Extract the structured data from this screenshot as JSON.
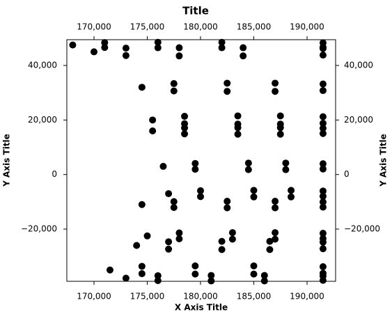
{
  "chart_data": {
    "type": "scatter",
    "title": "Title",
    "x_label": "X Axis Title",
    "y_label": "Y Axis Title",
    "color": "#000000",
    "xlim": [
      167450,
      192680
    ],
    "ylim": [
      -39150,
      49450
    ],
    "xticks": [
      {
        "value": 170000,
        "label": "170,000"
      },
      {
        "value": 175000,
        "label": "175,000"
      },
      {
        "value": 180000,
        "label": "180,000"
      },
      {
        "value": 185000,
        "label": "185,000"
      },
      {
        "value": 190000,
        "label": "190,000"
      }
    ],
    "yticks": [
      {
        "value": -20000,
        "label": "−20,000"
      },
      0,
      {
        "value": 20000,
        "label": "20,000"
      },
      {
        "value": 40000,
        "label": "40,000"
      }
    ],
    "x": [
      168000,
      171000,
      171000,
      176000,
      176000,
      182000,
      182000,
      191500,
      191500,
      170000,
      173000,
      173000,
      178000,
      178000,
      184000,
      184000,
      191500,
      191500,
      174500,
      177500,
      177500,
      182500,
      182500,
      187000,
      187000,
      191500,
      191500,
      175500,
      178500,
      178500,
      183500,
      183500,
      187500,
      187500,
      191500,
      191500,
      175500,
      178500,
      178500,
      183500,
      183500,
      187500,
      187500,
      191500,
      191500,
      176500,
      179500,
      179500,
      184500,
      184500,
      188000,
      188000,
      191500,
      191500,
      177000,
      180000,
      180000,
      185000,
      185000,
      188500,
      188500,
      191500,
      191500,
      174500,
      177500,
      177500,
      182500,
      182500,
      187000,
      187000,
      191500,
      191500,
      175000,
      178000,
      178000,
      183000,
      183000,
      187000,
      187000,
      191500,
      191500,
      174000,
      177000,
      177000,
      182000,
      182000,
      186500,
      186500,
      191500,
      191500,
      171500,
      174500,
      174500,
      179500,
      179500,
      185000,
      185000,
      191500,
      191500,
      173000,
      176000,
      176000,
      181000,
      181000,
      186000,
      186000,
      191500,
      191500
    ],
    "values": [
      47500,
      48400,
      46600,
      48500,
      46500,
      48500,
      46500,
      48300,
      46700,
      45000,
      46350,
      43650,
      46500,
      43500,
      46500,
      43500,
      46200,
      43800,
      32000,
      33350,
      30650,
      33500,
      30500,
      33500,
      30500,
      33200,
      30800,
      20000,
      21350,
      18650,
      21500,
      18500,
      21500,
      18500,
      21200,
      18800,
      16000,
      17080,
      14920,
      17200,
      14800,
      17200,
      14800,
      16960,
      15040,
      3000,
      4080,
      1920,
      4200,
      1800,
      4200,
      1800,
      3960,
      2040,
      -7000,
      -5920,
      -8080,
      -5800,
      -8200,
      -5800,
      -8200,
      -6040,
      -7960,
      -11000,
      -9920,
      -12080,
      -9800,
      -12200,
      -9800,
      -12200,
      -10040,
      -11960,
      -22500,
      -21420,
      -23580,
      -21300,
      -23700,
      -21300,
      -23700,
      -21540,
      -23460,
      -26000,
      -24650,
      -27350,
      -24500,
      -27500,
      -24500,
      -27500,
      -24800,
      -27200,
      -35000,
      -33650,
      -36350,
      -33500,
      -36500,
      -33500,
      -36500,
      -33800,
      -36200,
      -38000,
      -37100,
      -38900,
      -37000,
      -39000,
      -37000,
      -39000,
      -37200,
      -38800
    ]
  }
}
